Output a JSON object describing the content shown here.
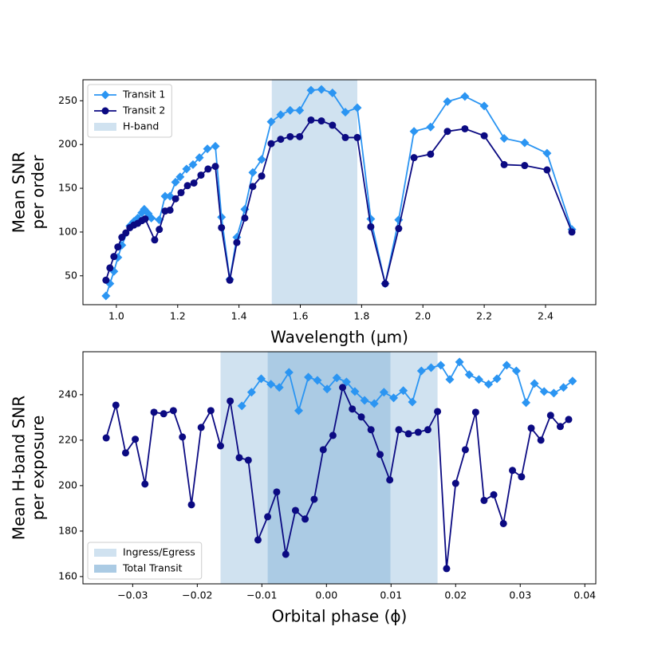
{
  "chart_data": [
    {
      "type": "line",
      "xlabel": "Wavelength (μm)",
      "ylabel": [
        "Mean SNR",
        "per order"
      ],
      "xlim": [
        0.891,
        2.564
      ],
      "ylim": [
        17,
        274
      ],
      "xticks": [
        {
          "value": 1,
          "label": "1.0"
        },
        1.2,
        1.4,
        1.6,
        1.8,
        {
          "value": 2,
          "label": "2.0"
        },
        2.2,
        2.4
      ],
      "yticks": [
        50,
        100,
        150,
        200,
        250
      ],
      "legend": "upper left",
      "spans": [
        {
          "name": "H-band",
          "color": "#d0e2f0",
          "range": [
            1.507,
            1.786
          ]
        }
      ],
      "series": [
        {
          "name": "Transit 1",
          "color": "#2b95f2",
          "marker": "diamond",
          "x": [
            0.966,
            0.979,
            0.992,
            1.005,
            1.018,
            1.044,
            1.057,
            1.07,
            1.083,
            1.091,
            1.104,
            1.114,
            1.14,
            1.159,
            1.175,
            1.193,
            1.208,
            1.229,
            1.25,
            1.271,
            1.297,
            1.323,
            1.343,
            1.37,
            1.393,
            1.419,
            1.445,
            1.474,
            1.505,
            1.536,
            1.567,
            1.598,
            1.635,
            1.669,
            1.705,
            1.747,
            1.786,
            1.83,
            1.877,
            1.921,
            1.971,
            2.025,
            2.08,
            2.137,
            2.2,
            2.265,
            2.332,
            2.405,
            2.486
          ],
          "values": [
            27,
            41,
            55,
            71,
            85,
            107,
            112,
            116,
            122,
            126,
            121,
            116,
            114,
            141,
            141,
            157,
            163,
            172,
            177,
            185,
            195,
            198,
            117,
            46,
            94,
            126,
            168,
            183,
            226,
            234,
            239,
            239,
            262,
            263,
            259,
            237,
            242,
            115,
            41,
            114,
            215,
            220,
            249,
            255,
            244,
            207,
            202,
            190,
            103
          ]
        },
        {
          "name": "Transit 2",
          "color": "#0b0a82",
          "marker": "circle",
          "x": [
            0.966,
            0.979,
            0.992,
            1.005,
            1.018,
            1.031,
            1.044,
            1.057,
            1.07,
            1.083,
            1.094,
            1.125,
            1.14,
            1.159,
            1.175,
            1.193,
            1.211,
            1.232,
            1.253,
            1.276,
            1.299,
            1.323,
            1.343,
            1.37,
            1.393,
            1.419,
            1.445,
            1.474,
            1.505,
            1.536,
            1.567,
            1.598,
            1.635,
            1.669,
            1.705,
            1.747,
            1.786,
            1.83,
            1.877,
            1.921,
            1.971,
            2.025,
            2.08,
            2.137,
            2.2,
            2.265,
            2.332,
            2.405,
            2.486
          ],
          "values": [
            45,
            59,
            72,
            83,
            94,
            99,
            105,
            108,
            110,
            113,
            115,
            91,
            103,
            124,
            125,
            138,
            145,
            153,
            156,
            165,
            172,
            175,
            105,
            45,
            88,
            116,
            152,
            164,
            201,
            206,
            209,
            209,
            228,
            227,
            222,
            208,
            208,
            106,
            41,
            104,
            185,
            189,
            215,
            218,
            210,
            177,
            176,
            171,
            100
          ]
        }
      ]
    },
    {
      "type": "line",
      "xlabel": "Orbital phase (ϕ)",
      "ylabel": [
        "Mean H-band SNR",
        "per exposure"
      ],
      "xlim": [
        -0.0377,
        0.0417
      ],
      "ylim": [
        156.8,
        258.9
      ],
      "xticks": [
        {
          "value": -0.03,
          "label": "−0.03"
        },
        {
          "value": -0.02,
          "label": "−0.02"
        },
        {
          "value": -0.01,
          "label": "−0.01"
        },
        {
          "value": 0,
          "label": "0.00"
        },
        0.01,
        0.02,
        0.03,
        0.04
      ],
      "yticks": [
        160,
        180,
        200,
        220,
        240
      ],
      "legend": "lower left",
      "spans": [
        {
          "name": "Ingress/Egress",
          "color": "#d0e2f0",
          "range": [
            -0.0164,
            0.0172
          ]
        },
        {
          "name": "Total Transit",
          "color": "#abcbe4",
          "range": [
            -0.0091,
            0.0099
          ]
        }
      ],
      "series": [
        {
          "color": "#2b95f2",
          "marker": "diamond",
          "x": [
            -0.0131,
            -0.0116,
            -0.0101,
            -0.0086,
            -0.0073,
            -0.0058,
            -0.0043,
            -0.0028,
            -0.0014,
            0.0001,
            0.0016,
            0.0031,
            0.0044,
            0.0059,
            0.0074,
            0.0089,
            0.0104,
            0.0119,
            0.0133,
            0.0147,
            0.0162,
            0.0177,
            0.0191,
            0.0206,
            0.0221,
            0.0236,
            0.0251,
            0.0264,
            0.0279,
            0.0294,
            0.0309,
            0.0322,
            0.0337,
            0.0352,
            0.0367,
            0.0381
          ],
          "values": [
            235.1,
            241.1,
            247,
            244.6,
            243.2,
            249.8,
            233,
            247.7,
            246.3,
            242.5,
            247.4,
            245.6,
            241.4,
            237.5,
            236.1,
            241.1,
            238.6,
            241.8,
            236.8,
            250.5,
            251.9,
            253,
            246.7,
            254.4,
            248.8,
            246.7,
            244.6,
            247,
            253,
            250.5,
            236.5,
            244.9,
            241.4,
            240.7,
            243.2,
            246
          ]
        },
        {
          "color": "#0b0a82",
          "marker": "circle",
          "x": [
            -0.0341,
            -0.0326,
            -0.0311,
            -0.0296,
            -0.0281,
            -0.0267,
            -0.0252,
            -0.0237,
            -0.0223,
            -0.0209,
            -0.0194,
            -0.0179,
            -0.0164,
            -0.0149,
            -0.0135,
            -0.0121,
            -0.0106,
            -0.0091,
            -0.0077,
            -0.0063,
            -0.0048,
            -0.0033,
            -0.0019,
            -0.0005,
            0.001,
            0.0025,
            0.004,
            0.0054,
            0.0069,
            0.0083,
            0.0098,
            0.0112,
            0.0127,
            0.0142,
            0.0157,
            0.0172,
            0.0186,
            0.02,
            0.0215,
            0.0231,
            0.0244,
            0.0259,
            0.0274,
            0.0288,
            0.0302,
            0.0317,
            0.0332,
            0.0347,
            0.0362,
            0.0375
          ],
          "values": [
            221,
            235.4,
            214.4,
            220.4,
            200.7,
            232.3,
            231.6,
            233,
            221.4,
            191.6,
            225.6,
            233,
            217.5,
            237.2,
            212.3,
            211.2,
            176.1,
            186.3,
            197.2,
            169.8,
            189.1,
            185.3,
            194,
            215.8,
            222.1,
            243.2,
            233.7,
            230.2,
            224.6,
            213.7,
            202.5,
            224.6,
            222.8,
            223.5,
            224.6,
            232.6,
            163.5,
            201,
            215.8,
            232.3,
            193.5,
            196,
            183.3,
            206.7,
            203.9,
            225.3,
            220,
            230.9,
            226,
            229.1
          ]
        }
      ]
    }
  ]
}
